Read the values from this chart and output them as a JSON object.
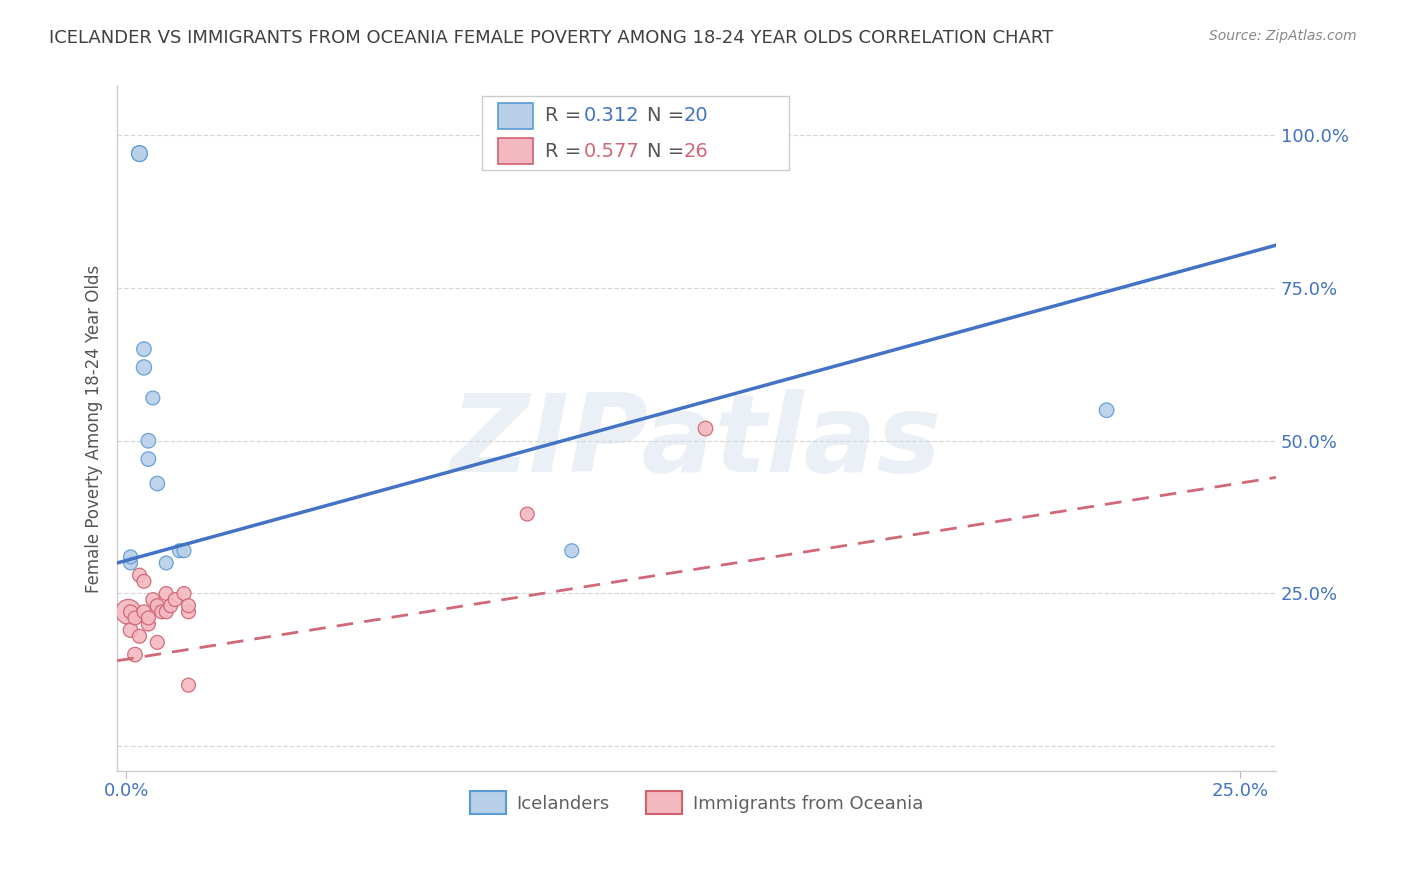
{
  "title": "ICELANDER VS IMMIGRANTS FROM OCEANIA FEMALE POVERTY AMONG 18-24 YEAR OLDS CORRELATION CHART",
  "source": "Source: ZipAtlas.com",
  "ylabel": "Female Poverty Among 18-24 Year Olds",
  "ytick_values": [
    0.0,
    0.25,
    0.5,
    0.75,
    1.0
  ],
  "ytick_labels": [
    "",
    "25.0%",
    "50.0%",
    "75.0%",
    "100.0%"
  ],
  "xtick_values": [
    0.0,
    0.25
  ],
  "xtick_labels": [
    "0.0%",
    "25.0%"
  ],
  "xlim": [
    -0.002,
    0.258
  ],
  "ylim": [
    -0.04,
    1.08
  ],
  "legend_blue_r": "0.312",
  "legend_blue_n": "20",
  "legend_pink_r": "0.577",
  "legend_pink_n": "26",
  "legend_label_blue": "Icelanders",
  "legend_label_pink": "Immigrants from Oceania",
  "watermark": "ZIPatlas",
  "blue_x": [
    0.001,
    0.001,
    0.003,
    0.003,
    0.004,
    0.004,
    0.005,
    0.005,
    0.006,
    0.007,
    0.009,
    0.012,
    0.013,
    0.1,
    0.22
  ],
  "blue_y": [
    0.3,
    0.31,
    0.97,
    0.97,
    0.62,
    0.65,
    0.47,
    0.5,
    0.57,
    0.43,
    0.3,
    0.32,
    0.32,
    0.32,
    0.55
  ],
  "blue_s": [
    100,
    100,
    130,
    130,
    120,
    110,
    110,
    110,
    100,
    110,
    100,
    100,
    100,
    100,
    110
  ],
  "pink_x": [
    0.0005,
    0.001,
    0.001,
    0.002,
    0.002,
    0.003,
    0.003,
    0.004,
    0.004,
    0.005,
    0.005,
    0.006,
    0.007,
    0.007,
    0.008,
    0.009,
    0.009,
    0.01,
    0.011,
    0.013,
    0.014,
    0.014,
    0.014,
    0.09,
    0.13
  ],
  "pink_y": [
    0.22,
    0.19,
    0.22,
    0.15,
    0.21,
    0.18,
    0.28,
    0.27,
    0.22,
    0.2,
    0.21,
    0.24,
    0.23,
    0.17,
    0.22,
    0.25,
    0.22,
    0.23,
    0.24,
    0.25,
    0.22,
    0.23,
    0.1,
    0.38,
    0.52
  ],
  "pink_s": [
    320,
    110,
    100,
    110,
    100,
    100,
    100,
    100,
    100,
    100,
    100,
    100,
    100,
    100,
    100,
    100,
    100,
    100,
    100,
    100,
    100,
    100,
    100,
    100,
    110
  ],
  "blue_line_x": [
    -0.002,
    0.258
  ],
  "blue_line_y": [
    0.3,
    0.82
  ],
  "pink_line_x": [
    -0.002,
    0.258
  ],
  "pink_line_y": [
    0.14,
    0.44
  ],
  "blue_face": "#b8d0e8",
  "blue_edge": "#5b9bd5",
  "pink_face": "#f4b8c0",
  "pink_edge": "#d06070",
  "blue_line_color": "#4472c4",
  "pink_line_color": "#d06878",
  "grid_color": "#d8d8d8",
  "bg": "#ffffff",
  "title_color": "#404040",
  "ylabel_color": "#555555",
  "tick_color": "#4472c4",
  "source_color": "#888888",
  "watermark_color": "#ccd9ec",
  "watermark_alpha": 0.38
}
